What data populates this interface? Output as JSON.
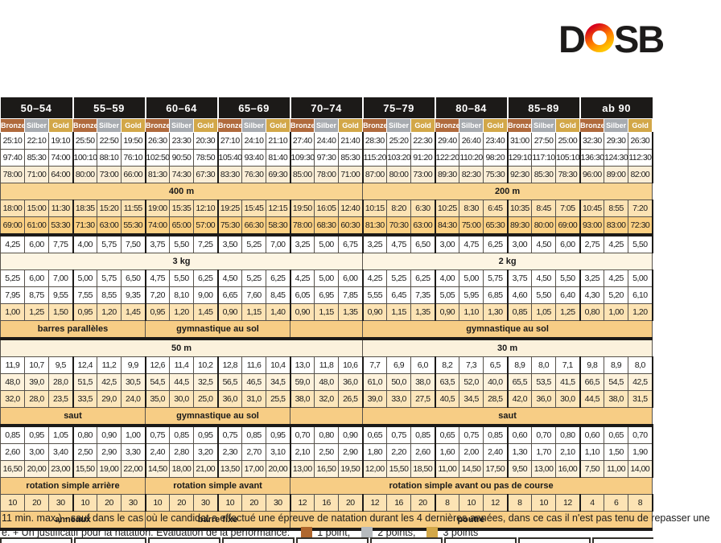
{
  "logo": {
    "d": "D",
    "sb": "SB",
    "ring_colors": {
      "top": "#d6001c",
      "mid": "#ff7800",
      "bottom": "#ffc400"
    }
  },
  "table": {
    "age_groups": [
      "50–54",
      "55–59",
      "60–64",
      "65–69",
      "70–74",
      "75–79",
      "80–84",
      "85–89",
      "ab 90"
    ],
    "medal_labels": [
      "Bronze",
      "Silber",
      "Gold"
    ],
    "medal_colors": {
      "bronze": "#b06a3c",
      "silber": "#a7abb0",
      "gold": "#d2a748"
    },
    "rows": [
      {
        "type": "data",
        "bg": "white",
        "values": [
          "25:10",
          "22:10",
          "19:10",
          "25:50",
          "22:50",
          "19:50",
          "26:30",
          "23:30",
          "20:30",
          "27:10",
          "24:10",
          "21:10",
          "27:40",
          "24:40",
          "21:40",
          "28:30",
          "25:20",
          "22:30",
          "29:40",
          "26:40",
          "23:40",
          "31:00",
          "27:50",
          "25:00",
          "32:30",
          "29:30",
          "26:30"
        ]
      },
      {
        "type": "data",
        "bg": "white",
        "values": [
          "97:40",
          "85:30",
          "74:00",
          "100:10",
          "88:10",
          "76:10",
          "102:50",
          "90:50",
          "78:50",
          "105:40",
          "93:40",
          "81:40",
          "109:30",
          "97:30",
          "85:30",
          "115:20",
          "103:20",
          "91:20",
          "122:20",
          "110:20",
          "98:20",
          "129:10",
          "117:10",
          "105:10",
          "136:30",
          "124:30",
          "112:30"
        ]
      },
      {
        "type": "data",
        "bg": "beige",
        "values": [
          "78:00",
          "71:00",
          "64:00",
          "80:00",
          "73:00",
          "66:00",
          "81:30",
          "74:30",
          "67:30",
          "83:30",
          "76:30",
          "69:30",
          "85:00",
          "78:00",
          "71:00",
          "87:00",
          "80:00",
          "73:00",
          "89:30",
          "82:30",
          "75:30",
          "92:30",
          "85:30",
          "78:30",
          "96:00",
          "89:00",
          "82:00"
        ]
      },
      {
        "type": "span",
        "bg": "tanlight",
        "cells": [
          {
            "label": "400 m",
            "span": 15
          },
          {
            "label": "200 m",
            "span": 12
          }
        ]
      },
      {
        "type": "data",
        "bg": "peach",
        "values": [
          "18:00",
          "15:00",
          "11:30",
          "18:35",
          "15:20",
          "11:55",
          "19:00",
          "15:35",
          "12:10",
          "19:25",
          "15:45",
          "12:15",
          "19:50",
          "16:05",
          "12:40",
          "10:15",
          "8:20",
          "6:30",
          "10:25",
          "8:30",
          "6:45",
          "10:35",
          "8:45",
          "7:05",
          "10:45",
          "8:55",
          "7:20"
        ]
      },
      {
        "type": "data",
        "bg": "orange",
        "thick": true,
        "values": [
          "69:00",
          "61:00",
          "53:30",
          "71:30",
          "63:00",
          "55:30",
          "74:00",
          "65:00",
          "57:00",
          "75:30",
          "66:30",
          "58:30",
          "78:00",
          "68:30",
          "60:30",
          "81:30",
          "70:30",
          "63:00",
          "84:30",
          "75:00",
          "65:30",
          "89:30",
          "80:00",
          "69:00",
          "93:00",
          "83:00",
          "72:30"
        ]
      },
      {
        "type": "data",
        "bg": "white",
        "values": [
          "4,25",
          "6,00",
          "7,75",
          "4,00",
          "5,75",
          "7,50",
          "3,75",
          "5,50",
          "7,25",
          "3,50",
          "5,25",
          "7,00",
          "3,25",
          "5,00",
          "6,75",
          "3,25",
          "4,75",
          "6,50",
          "3,00",
          "4,75",
          "6,25",
          "3,00",
          "4,50",
          "6,00",
          "2,75",
          "4,25",
          "5,50"
        ]
      },
      {
        "type": "span",
        "bg": "cream",
        "cells": [
          {
            "label": "3 kg",
            "span": 15
          },
          {
            "label": "2 kg",
            "span": 12
          }
        ]
      },
      {
        "type": "data",
        "bg": "white",
        "values": [
          "5,25",
          "6,00",
          "7,00",
          "5,00",
          "5,75",
          "6,50",
          "4,75",
          "5,50",
          "6,25",
          "4,50",
          "5,25",
          "6,25",
          "4,25",
          "5,00",
          "6,00",
          "4,25",
          "5,25",
          "6,25",
          "4,00",
          "5,00",
          "5,75",
          "3,75",
          "4,50",
          "5,50",
          "3,25",
          "4,25",
          "5,00"
        ]
      },
      {
        "type": "data",
        "bg": "white",
        "values": [
          "7,95",
          "8,75",
          "9,55",
          "7,55",
          "8,55",
          "9,35",
          "7,20",
          "8,10",
          "9,00",
          "6,65",
          "7,60",
          "8,45",
          "6,05",
          "6,95",
          "7,85",
          "5,55",
          "6,45",
          "7,35",
          "5,05",
          "5,95",
          "6,85",
          "4,60",
          "5,50",
          "6,40",
          "4,30",
          "5,20",
          "6,10"
        ]
      },
      {
        "type": "data",
        "bg": "peach",
        "values": [
          "1,00",
          "1,25",
          "1,50",
          "0,95",
          "1,20",
          "1,45",
          "0,95",
          "1,20",
          "1,45",
          "0,90",
          "1,15",
          "1,40",
          "0,90",
          "1,15",
          "1,35",
          "0,90",
          "1,15",
          "1,35",
          "0,90",
          "1,10",
          "1,30",
          "0,85",
          "1,05",
          "1,25",
          "0,80",
          "1,00",
          "1,20"
        ]
      },
      {
        "type": "span",
        "bg": "tan",
        "thick": true,
        "cells": [
          {
            "label": "barres parallèles",
            "span": 6
          },
          {
            "label": "gymnastique au sol",
            "span": 6
          },
          {
            "label": "",
            "span": 3
          },
          {
            "label": "gymnastique au sol",
            "span": 12
          }
        ]
      },
      {
        "type": "span",
        "bg": "beige2",
        "cells": [
          {
            "label": "50 m",
            "span": 15
          },
          {
            "label": "30 m",
            "span": 12
          }
        ]
      },
      {
        "type": "data",
        "bg": "white",
        "values": [
          "11,9",
          "10,7",
          "9,5",
          "12,4",
          "11,2",
          "9,9",
          "12,6",
          "11,4",
          "10,2",
          "12,8",
          "11,6",
          "10,4",
          "13,0",
          "11,8",
          "10,6",
          "7,7",
          "6,9",
          "6,0",
          "8,2",
          "7,3",
          "6,5",
          "8,9",
          "8,0",
          "7,1",
          "9,8",
          "8,9",
          "8,0"
        ]
      },
      {
        "type": "data",
        "bg": "cream2",
        "values": [
          "48,0",
          "39,0",
          "28,0",
          "51,5",
          "42,5",
          "30,5",
          "54,5",
          "44,5",
          "32,5",
          "56,5",
          "46,5",
          "34,5",
          "59,0",
          "48,0",
          "36,0",
          "61,0",
          "50,0",
          "38,0",
          "63,5",
          "52,0",
          "40,0",
          "65,5",
          "53,5",
          "41,5",
          "66,5",
          "54,5",
          "42,5"
        ]
      },
      {
        "type": "data",
        "bg": "ltpeach",
        "values": [
          "32,0",
          "28,0",
          "23,5",
          "33,5",
          "29,0",
          "24,0",
          "35,0",
          "30,0",
          "25,0",
          "36,0",
          "31,0",
          "25,5",
          "38,0",
          "32,0",
          "26,5",
          "39,0",
          "33,0",
          "27,5",
          "40,5",
          "34,5",
          "28,5",
          "42,0",
          "36,0",
          "30,0",
          "44,5",
          "38,0",
          "31,5"
        ]
      },
      {
        "type": "span",
        "bg": "tan",
        "thick": true,
        "cells": [
          {
            "label": "saut",
            "span": 6
          },
          {
            "label": "gymnastique au sol",
            "span": 6
          },
          {
            "label": "",
            "span": 3
          },
          {
            "label": "saut",
            "span": 12
          }
        ]
      },
      {
        "type": "data",
        "bg": "white",
        "values": [
          "0,85",
          "0,95",
          "1,05",
          "0,80",
          "0,90",
          "1,00",
          "0,75",
          "0,85",
          "0,95",
          "0,75",
          "0,85",
          "0,95",
          "0,70",
          "0,80",
          "0,90",
          "0,65",
          "0,75",
          "0,85",
          "0,65",
          "0,75",
          "0,85",
          "0,60",
          "0,70",
          "0,80",
          "0,60",
          "0,65",
          "0,70"
        ]
      },
      {
        "type": "data",
        "bg": "white",
        "values": [
          "2,60",
          "3,00",
          "3,40",
          "2,50",
          "2,90",
          "3,30",
          "2,40",
          "2,80",
          "3,20",
          "2,30",
          "2,70",
          "3,10",
          "2,10",
          "2,50",
          "2,90",
          "1,80",
          "2,20",
          "2,60",
          "1,60",
          "2,00",
          "2,40",
          "1,30",
          "1,70",
          "2,10",
          "1,10",
          "1,50",
          "1,90"
        ]
      },
      {
        "type": "data",
        "bg": "cream2",
        "values": [
          "16,50",
          "20,00",
          "23,00",
          "15,50",
          "19,00",
          "22,00",
          "14,50",
          "18,00",
          "21,00",
          "13,50",
          "17,00",
          "20,00",
          "13,00",
          "16,50",
          "19,50",
          "12,00",
          "15,50",
          "18,50",
          "11,00",
          "14,50",
          "17,50",
          "9,50",
          "13,00",
          "16,00",
          "7,50",
          "11,00",
          "14,00"
        ]
      },
      {
        "type": "span",
        "bg": "tan",
        "cells": [
          {
            "label": "rotation simple arrière",
            "span": 6
          },
          {
            "label": "rotation simple avant",
            "span": 6
          },
          {
            "label": "rotation simple avant ou pas de course",
            "span": 15
          }
        ]
      },
      {
        "type": "data",
        "bg": "peach",
        "values": [
          "10",
          "20",
          "30",
          "10",
          "20",
          "30",
          "10",
          "20",
          "30",
          "10",
          "20",
          "30",
          "12",
          "16",
          "20",
          "12",
          "16",
          "20",
          "8",
          "10",
          "12",
          "8",
          "10",
          "12",
          "4",
          "6",
          "8"
        ]
      },
      {
        "type": "span",
        "bg": "tan",
        "thick": true,
        "cells": [
          {
            "label": "anneaux",
            "span": 6
          },
          {
            "label": "barre fixe",
            "span": 6
          },
          {
            "label": "poutre",
            "span": 15
          }
        ]
      }
    ]
  },
  "footer": {
    "line1": "11 min. max.) - sauf dans le cas où le candidat a effectué une épreuve de natation durant les 4 dernières années, dans ce cas il n'est pas tenu de repasser une",
    "line2_prefix": "e. + Un justificatif pour la natation. Evaluation de la performance:",
    "legend": [
      {
        "label": "1 point,",
        "color": "#af672e"
      },
      {
        "label": "2 points,",
        "color": "#b6babd"
      },
      {
        "label": "3 points",
        "color": "#d2a748"
      }
    ]
  }
}
